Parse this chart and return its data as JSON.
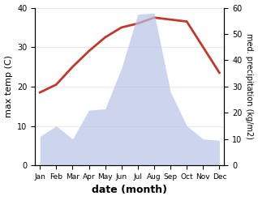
{
  "months": [
    "Jan",
    "Feb",
    "Mar",
    "Apr",
    "May",
    "Jun",
    "Jul",
    "Aug",
    "Sep",
    "Oct",
    "Nov",
    "Dec"
  ],
  "max_temp": [
    18.5,
    20.5,
    25.0,
    29.0,
    32.5,
    35.0,
    36.0,
    37.5,
    37.0,
    36.5,
    30.0,
    23.5
  ],
  "precipitation": [
    11.0,
    15.0,
    10.0,
    21.0,
    21.5,
    37.0,
    57.5,
    58.0,
    28.0,
    15.0,
    10.0,
    9.5
  ],
  "temp_color": "#c0392b",
  "precip_fill_color": "#b8c4e8",
  "ylabel_left": "max temp (C)",
  "ylabel_right": "med. precipitation (kg/m2)",
  "xlabel": "date (month)",
  "ylim_left": [
    0,
    40
  ],
  "ylim_right": [
    0,
    60
  ],
  "yticks_left": [
    0,
    10,
    20,
    30,
    40
  ],
  "yticks_right": [
    0,
    10,
    20,
    30,
    40,
    50,
    60
  ],
  "background_color": "#ffffff"
}
